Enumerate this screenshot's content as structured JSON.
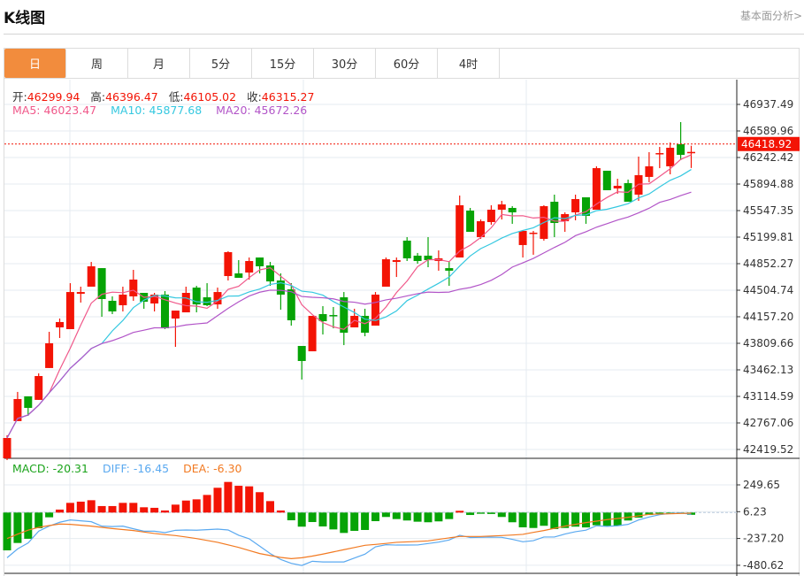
{
  "header": {
    "title": "K线图",
    "link": "基本面分析>"
  },
  "tabs": [
    {
      "label": "日",
      "active": true
    },
    {
      "label": "周"
    },
    {
      "label": "月"
    },
    {
      "label": "5分"
    },
    {
      "label": "15分"
    },
    {
      "label": "30分"
    },
    {
      "label": "60分"
    },
    {
      "label": "4时"
    }
  ],
  "ohlc_legend": {
    "open_label": "开:",
    "open": "46299.94",
    "high_label": "高:",
    "high": "46396.47",
    "low_label": "低:",
    "low": "46105.02",
    "close_label": "收:",
    "close": "46315.27"
  },
  "ma_legend": {
    "ma5": "MA5: 46023.47",
    "ma10": "MA10: 45877.68",
    "ma20": "MA20: 45672.26"
  },
  "macd_legend": {
    "macd": "MACD: -20.31",
    "diff": "DIFF: -16.45",
    "dea": "DEA: -6.30"
  },
  "colors": {
    "up": "#f31405",
    "down": "#06a306",
    "ma5": "#f0588a",
    "ma10": "#35c8e0",
    "ma20": "#b255c8",
    "diff": "#5aa9f0",
    "dea": "#f27a22",
    "accent": "#f28c3d"
  },
  "chart_data": {
    "type": "candlestick",
    "current_price": "46418.92",
    "y_ticks": [
      "46937.49",
      "46589.96",
      "46242.42",
      "45894.88",
      "45547.35",
      "45199.81",
      "44852.27",
      "44504.74",
      "44157.20",
      "43809.66",
      "43462.13",
      "43114.59",
      "42767.06",
      "42419.52"
    ],
    "ylim": [
      42419.52,
      46937.49
    ],
    "candles_ohlc": [
      [
        42304,
        42605,
        42281,
        42570
      ],
      [
        42791,
        43173,
        42791,
        43080
      ],
      [
        43115,
        43115,
        42860,
        42964
      ],
      [
        43069,
        43416,
        43069,
        43381
      ],
      [
        43486,
        43960,
        43486,
        43810
      ],
      [
        44018,
        44134,
        43879,
        44088
      ],
      [
        43995,
        44597,
        43995,
        44481
      ],
      [
        44458,
        44551,
        44343,
        44481
      ],
      [
        44551,
        44875,
        44551,
        44818
      ],
      [
        44794,
        44794,
        44157,
        44389
      ],
      [
        44366,
        44424,
        44192,
        44227
      ],
      [
        44308,
        44551,
        44227,
        44447
      ],
      [
        44424,
        44771,
        44366,
        44644
      ],
      [
        44470,
        44470,
        44262,
        44354
      ],
      [
        44331,
        44470,
        44227,
        44447
      ],
      [
        44447,
        44493,
        43995,
        44006
      ],
      [
        44134,
        44238,
        43763,
        44238
      ],
      [
        44215,
        44551,
        44215,
        44470
      ],
      [
        44539,
        44562,
        44215,
        44319
      ],
      [
        44412,
        44597,
        44296,
        44308
      ],
      [
        44319,
        44539,
        44262,
        44481
      ],
      [
        44690,
        45015,
        44632,
        45003
      ],
      [
        44725,
        44899,
        44667,
        44667
      ],
      [
        44736,
        44933,
        44644,
        44887
      ],
      [
        44933,
        44933,
        44725,
        44818
      ],
      [
        44829,
        44875,
        44562,
        44620
      ],
      [
        44632,
        44725,
        44250,
        44447
      ],
      [
        44516,
        44597,
        44041,
        44111
      ],
      [
        43775,
        43775,
        43335,
        43578
      ],
      [
        43705,
        44169,
        43705,
        44169
      ],
      [
        44192,
        44296,
        43925,
        44099
      ],
      [
        44180,
        44285,
        44006,
        44169
      ],
      [
        44412,
        44481,
        43786,
        43948
      ],
      [
        44018,
        44262,
        44018,
        44169
      ],
      [
        44169,
        44262,
        43902,
        43948
      ],
      [
        44041,
        44481,
        44041,
        44447
      ],
      [
        44551,
        44933,
        44551,
        44910
      ],
      [
        44875,
        44933,
        44678,
        44899
      ],
      [
        45154,
        45200,
        44887,
        44922
      ],
      [
        44957,
        44992,
        44852,
        44887
      ],
      [
        44957,
        45200,
        44806,
        44899
      ],
      [
        44887,
        45026,
        44760,
        44922
      ],
      [
        44794,
        44887,
        44562,
        44760
      ],
      [
        44933,
        45744,
        44933,
        45617
      ],
      [
        45547,
        45582,
        45269,
        45269
      ],
      [
        45200,
        45431,
        45177,
        45408
      ],
      [
        45397,
        45617,
        45362,
        45559
      ],
      [
        45559,
        45675,
        45431,
        45628
      ],
      [
        45582,
        45605,
        45374,
        45524
      ],
      [
        45096,
        45281,
        44933,
        45281
      ],
      [
        45246,
        45281,
        44969,
        45258
      ],
      [
        45177,
        45617,
        45154,
        45605
      ],
      [
        45663,
        45756,
        45200,
        45385
      ],
      [
        45408,
        45524,
        45269,
        45501
      ],
      [
        45524,
        45756,
        45420,
        45698
      ],
      [
        45721,
        45721,
        45374,
        45478
      ],
      [
        45559,
        46127,
        45559,
        46103
      ],
      [
        46069,
        46069,
        45814,
        45814
      ],
      [
        45837,
        45964,
        45768,
        45872
      ],
      [
        45907,
        45953,
        45663,
        45663
      ],
      [
        45756,
        46254,
        45675,
        46011
      ],
      [
        45988,
        46312,
        45918,
        46127
      ],
      [
        46289,
        46381,
        46103,
        46300
      ],
      [
        46127,
        46439,
        46022,
        46370
      ],
      [
        46416,
        46706,
        46208,
        46277
      ],
      [
        46299.94,
        46396.47,
        46105.02,
        46315.27
      ]
    ],
    "macd": {
      "y_ticks": [
        "249.65",
        "6.23",
        "-237.20",
        "-480.62"
      ],
      "ylim": [
        -480.62,
        249.65
      ],
      "hist": [
        -343,
        -276,
        -238,
        -142,
        -43,
        27,
        88,
        99,
        112,
        59,
        59,
        88,
        88,
        48,
        43,
        19,
        72,
        109,
        120,
        160,
        225,
        278,
        243,
        238,
        185,
        104,
        19,
        -70,
        -128,
        -86,
        -126,
        -153,
        -185,
        -166,
        -158,
        -78,
        -40,
        -59,
        -72,
        -83,
        -88,
        -80,
        -59,
        16,
        -22,
        -11,
        -13,
        -40,
        -88,
        -134,
        -140,
        -120,
        -150,
        -140,
        -128,
        -135,
        -115,
        -124,
        -120,
        -72,
        -46,
        -22,
        -16,
        -13,
        -10,
        -20.31
      ],
      "diff": [
        -410,
        -330,
        -276,
        -169,
        -123,
        -88,
        -67,
        -75,
        -83,
        -123,
        -127,
        -123,
        -147,
        -169,
        -169,
        -182,
        -161,
        -158,
        -160,
        -155,
        -150,
        -158,
        -206,
        -238,
        -305,
        -372,
        -426,
        -461,
        -480,
        -442,
        -448,
        -448,
        -448,
        -413,
        -378,
        -311,
        -292,
        -295,
        -295,
        -294,
        -281,
        -268,
        -249,
        -206,
        -227,
        -225,
        -223,
        -225,
        -243,
        -265,
        -255,
        -222,
        -222,
        -195,
        -174,
        -160,
        -120,
        -125,
        -120,
        -107,
        -67,
        -40,
        -19,
        -8,
        -3,
        -16.45
      ],
      "dea": [
        -236,
        -196,
        -160,
        -134,
        -118,
        -104,
        -107,
        -115,
        -123,
        -134,
        -145,
        -154,
        -163,
        -177,
        -190,
        -200,
        -209,
        -222,
        -236,
        -253,
        -270,
        -293,
        -316,
        -344,
        -372,
        -390,
        -407,
        -418,
        -410,
        -395,
        -377,
        -357,
        -337,
        -317,
        -297,
        -289,
        -280,
        -270,
        -266,
        -262,
        -257,
        -243,
        -230,
        -217,
        -217,
        -217,
        -213,
        -209,
        -204,
        -198,
        -180,
        -163,
        -143,
        -123,
        -107,
        -91,
        -78,
        -64,
        -54,
        -43,
        -30,
        -16,
        -13,
        -11,
        -8,
        -6.3
      ]
    }
  }
}
